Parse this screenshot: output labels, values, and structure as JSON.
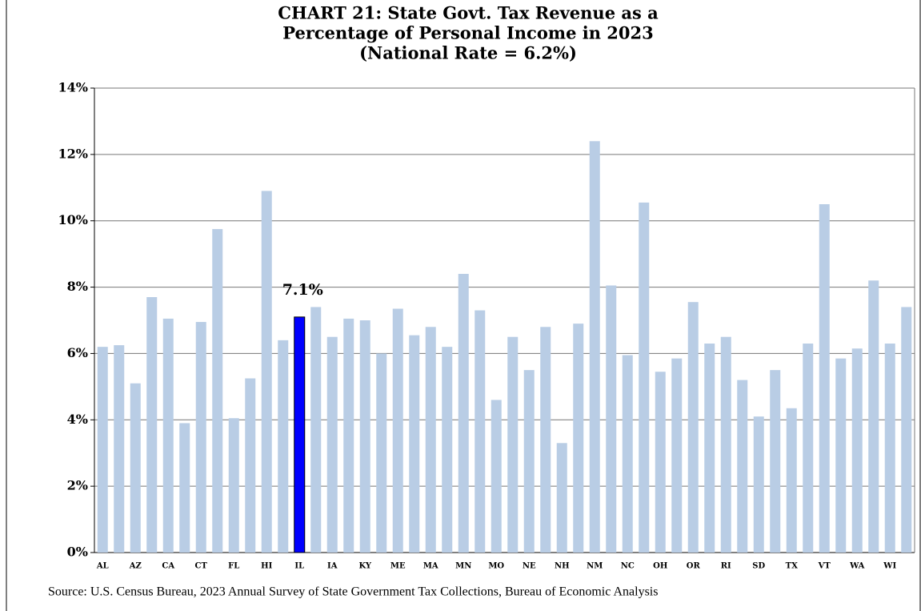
{
  "chart_data": {
    "type": "bar",
    "title": [
      "CHART 21:  State Govt. Tax Revenue as a",
      "Percentage of Personal Income in 2023",
      "(National Rate = 6.2%)"
    ],
    "source": "Source: U.S. Census Bureau, 2023 Annual Survey of State Government Tax Collections, Bureau of Economic Analysis",
    "categories": [
      "AL",
      null,
      "AZ",
      null,
      "CA",
      null,
      "CT",
      null,
      "FL",
      null,
      "HI",
      null,
      "IL",
      null,
      "IA",
      null,
      "KY",
      null,
      "ME",
      null,
      "MA",
      null,
      "MN",
      null,
      "MO",
      null,
      "NE",
      null,
      "NH",
      null,
      "NM",
      null,
      "NC",
      null,
      "OH",
      null,
      "OR",
      null,
      "RI",
      null,
      "SD",
      null,
      "TX",
      null,
      "VT",
      null,
      "WA",
      null,
      "WI",
      null
    ],
    "values": [
      6.2,
      6.25,
      5.1,
      7.7,
      7.05,
      3.9,
      6.95,
      9.75,
      4.05,
      5.25,
      10.9,
      6.4,
      7.1,
      7.4,
      6.5,
      7.05,
      7.0,
      6.0,
      7.35,
      6.55,
      6.8,
      6.2,
      8.4,
      7.3,
      4.6,
      6.5,
      5.5,
      6.8,
      3.3,
      6.9,
      12.4,
      8.05,
      5.95,
      10.55,
      5.45,
      5.85,
      7.55,
      6.3,
      6.5,
      5.2,
      4.1,
      5.5,
      4.35,
      6.3,
      10.5,
      5.85,
      6.15,
      8.2,
      6.3,
      7.4
    ],
    "value_labels": [
      null,
      null,
      null,
      null,
      null,
      null,
      null,
      null,
      null,
      null,
      null,
      null,
      "7.1%",
      null,
      null,
      null,
      null,
      null,
      null,
      null,
      null,
      null,
      null,
      null,
      null,
      null,
      null,
      null,
      null,
      null,
      null,
      null,
      null,
      null,
      null,
      null,
      null,
      null,
      null,
      null,
      null,
      null,
      null,
      null,
      null,
      null,
      null,
      null,
      null,
      null
    ],
    "color": "#b9cde5",
    "highlight_color": "#0000ff",
    "highlight": "IL",
    "ylim": [
      0,
      14
    ],
    "yticks": [
      {
        "value": 0,
        "label": "0%"
      },
      {
        "value": 2,
        "label": "2%"
      },
      {
        "value": 4,
        "label": "4%"
      },
      {
        "value": 6,
        "label": "6%"
      },
      {
        "value": 8,
        "label": "8%"
      },
      {
        "value": 10,
        "label": "10%"
      },
      {
        "value": 12,
        "label": "12%"
      },
      {
        "value": 14,
        "label": "14%"
      }
    ],
    "grid": true
  }
}
